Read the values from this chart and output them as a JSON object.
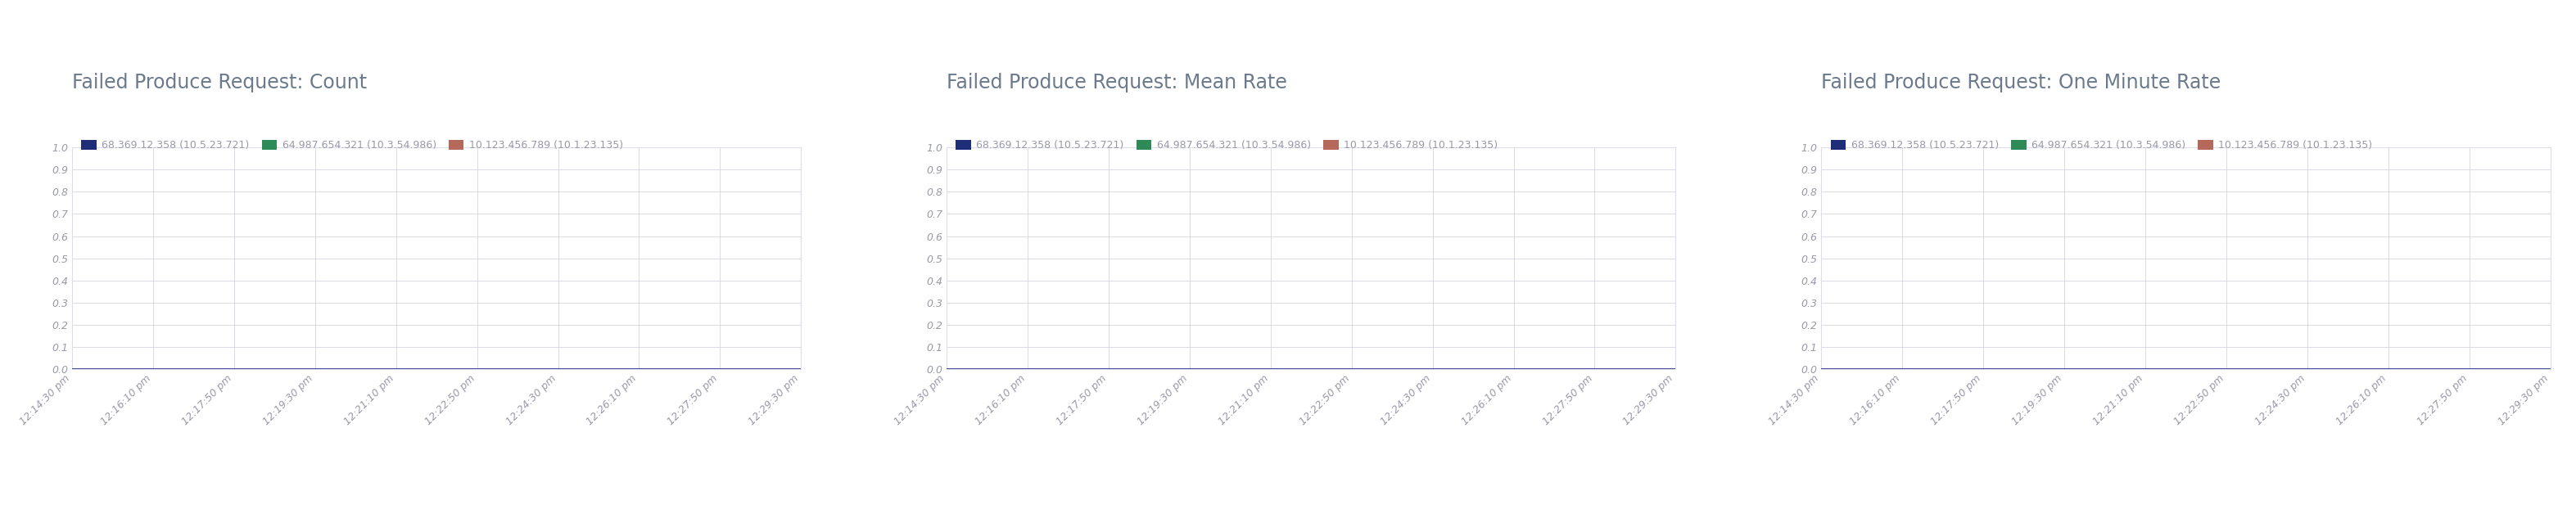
{
  "charts": [
    {
      "title": "Failed Produce Request: Count",
      "legend": [
        {
          "label": "68.369.12.358 (10.5.23.721)",
          "color": "#1e2d78"
        },
        {
          "label": "64.987.654.321 (10.3.54.986)",
          "color": "#2e8b57"
        },
        {
          "label": "10.123.456.789 (10.1.23.135)",
          "color": "#b5695a"
        }
      ]
    },
    {
      "title": "Failed Produce Request: Mean Rate",
      "legend": [
        {
          "label": "68.369.12.358 (10.5.23.721)",
          "color": "#1e2d78"
        },
        {
          "label": "64.987.654.321 (10.3.54.986)",
          "color": "#2e8b57"
        },
        {
          "label": "10.123.456.789 (10.1.23.135)",
          "color": "#b5695a"
        }
      ]
    },
    {
      "title": "Failed Produce Request: One Minute Rate",
      "legend": [
        {
          "label": "68.369.12.358 (10.5.23.721)",
          "color": "#1e2d78"
        },
        {
          "label": "64.987.654.321 (10.3.54.986)",
          "color": "#2e8b57"
        },
        {
          "label": "10.123.456.789 (10.1.23.135)",
          "color": "#b5695a"
        }
      ]
    }
  ],
  "x_ticks": [
    "12:14:30 pm",
    "12:16:10 pm",
    "12:17:50 pm",
    "12:19:30 pm",
    "12:21:10 pm",
    "12:22:50 pm",
    "12:24:30 pm",
    "12:26:10 pm",
    "12:27:50 pm",
    "12:29:30 pm"
  ],
  "y_ticks": [
    0,
    0.1,
    0.2,
    0.3,
    0.4,
    0.5,
    0.6,
    0.7,
    0.8,
    0.9,
    1.0
  ],
  "ylim": [
    0,
    1.0
  ],
  "line_color_main": "#1e2d78",
  "background_color": "#ffffff",
  "grid_color": "#d5d5e0",
  "title_color": "#6b7a8d",
  "tick_color": "#9999aa",
  "axis_color": "#ddddee",
  "title_fontsize": 17,
  "legend_fontsize": 9,
  "tick_fontsize": 9
}
